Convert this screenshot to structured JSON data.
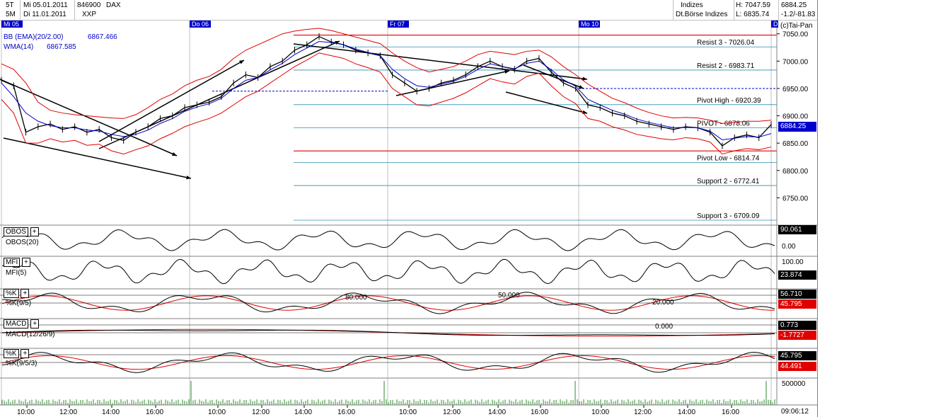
{
  "header": {
    "timeframe_1": "5T",
    "timeframe_2": "5M",
    "date_1": "Mi 05.01.2011",
    "date_2": "Di 11.01.2011",
    "wkn": "846900",
    "name": "DAX",
    "exchange_code": "XXP",
    "category": "Indizes",
    "exchange": "Dt.Börse Indizes",
    "high": "H: 7047.59",
    "low": "L: 6835.74",
    "last": "6884.25",
    "change": "-1.2/-81.83",
    "copyright": "(c)Tai-Pan"
  },
  "day_labels": [
    "Mi 05",
    "Do 06",
    "Fr 07",
    "Mo 10",
    "Di"
  ],
  "time_labels": [
    "10:00",
    "12:00",
    "14:00",
    "16:00",
    "10:00",
    "12:00",
    "14:00",
    "16:00",
    "10:00",
    "12:00",
    "14:00",
    "16:00",
    "10:00",
    "12:00",
    "14:00",
    "16:00"
  ],
  "clock": "09:06:12",
  "indicator_legend": {
    "bb_label": "BB (EMA)(20/2.00)",
    "bb_value": "6867.466",
    "wma_label": "WMA(14)",
    "wma_value": "6867.585"
  },
  "pivots": [
    {
      "label": "Resist 3 - 7026.04",
      "value": 7026.04
    },
    {
      "label": "Resist 2 - 6983.71",
      "value": 6983.71
    },
    {
      "label": "Pivot High - 6920.39",
      "value": 6920.39
    },
    {
      "label": "PIVOT - 6878.06",
      "value": 6878.06
    },
    {
      "label": "Pivot Low - 6814.74",
      "value": 6814.74
    },
    {
      "label": "Support 2 - 6772.41",
      "value": 6772.41
    },
    {
      "label": "Support 3 - 6709.09",
      "value": 6709.09
    }
  ],
  "panels": {
    "obos": {
      "button": "OBOS",
      "label": "OBOS(20)",
      "value_1": "90.061",
      "value_2": "0.00"
    },
    "mfi": {
      "button": "MFI",
      "label": "MFI(5)",
      "value_1": "100.00",
      "value_2": "23.874"
    },
    "stoch": {
      "button": "%K",
      "label": "%K(9/5)",
      "level_1": "80.000",
      "level_2": "50.000",
      "level_3": "20.000",
      "value_1": "56.710",
      "value_2": "45.795"
    },
    "macd": {
      "button": "MACD",
      "label": "MACD(12/26/9)",
      "zero": "0.000",
      "value_1": "0.773",
      "value_2": "-1.7727"
    },
    "stoch2": {
      "button": "%K",
      "label": "%K(9/5/3)",
      "value_1": "45.795",
      "value_2": "44.491"
    },
    "volume": {
      "value_1": "500000"
    }
  },
  "colors": {
    "price": "#000000",
    "bollinger": "#e00000",
    "wma": "#0000cc",
    "pivot_line": "#2a8fb0",
    "last_price_bg": "#0000cc",
    "signal": "#e00000",
    "day_label_bg": "#0000cc"
  },
  "chart_data": {
    "type": "line",
    "title": "DAX",
    "ylim": [
      6700,
      7060
    ],
    "y_ticks": [
      7050,
      7000,
      6950,
      6900,
      6850,
      6800,
      6750
    ],
    "last": 6884.25,
    "high": 7047.59,
    "low": 6835.74,
    "series": [
      {
        "name": "DAX",
        "values": [
          6965,
          6955,
          6870,
          6880,
          6885,
          6875,
          6880,
          6870,
          6875,
          6860,
          6855,
          6870,
          6880,
          6895,
          6900,
          6915,
          6920,
          6925,
          6935,
          6960,
          6975,
          6970,
          6990,
          7000,
          7020,
          7030,
          7045,
          7035,
          7030,
          7020,
          7015,
          7010,
          6975,
          6960,
          6945,
          6950,
          6960,
          6965,
          6975,
          6990,
          7000,
          6990,
          6985,
          7000,
          7005,
          6980,
          6960,
          6950,
          6920,
          6915,
          6905,
          6900,
          6890,
          6885,
          6880,
          6875,
          6880,
          6878,
          6870,
          6845,
          6860,
          6865,
          6860,
          6884
        ]
      },
      {
        "name": "WMA(14)",
        "values": [
          6960,
          6935,
          6905,
          6890,
          6882,
          6878,
          6878,
          6874,
          6872,
          6866,
          6862,
          6866,
          6874,
          6886,
          6895,
          6908,
          6916,
          6922,
          6932,
          6950,
          6965,
          6970,
          6984,
          6996,
          7012,
          7024,
          7036,
          7034,
          7030,
          7022,
          7016,
          7010,
          6985,
          6968,
          6955,
          6952,
          6958,
          6963,
          6972,
          6985,
          6995,
          6990,
          6986,
          6996,
          7000,
          6984,
          6966,
          6954,
          6930,
          6920,
          6910,
          6903,
          6894,
          6888,
          6883,
          6878,
          6879,
          6878,
          6872,
          6856,
          6859,
          6862,
          6861,
          6867.585
        ]
      }
    ],
    "bollinger": {
      "upper": [
        6995,
        6985,
        6960,
        6925,
        6910,
        6905,
        6902,
        6900,
        6898,
        6896,
        6895,
        6902,
        6915,
        6930,
        6940,
        6955,
        6965,
        6972,
        6985,
        7005,
        7020,
        7030,
        7040,
        7050,
        7055,
        7058,
        7060,
        7056,
        7050,
        7044,
        7038,
        7032,
        7015,
        7000,
        6988,
        6980,
        6985,
        6990,
        7000,
        7012,
        7018,
        7015,
        7012,
        7018,
        7020,
        7008,
        6990,
        6975,
        6958,
        6945,
        6932,
        6924,
        6914,
        6906,
        6900,
        6896,
        6897,
        6896,
        6892,
        6886,
        6888,
        6890,
        6890,
        6892
      ],
      "lower": [
        6930,
        6905,
        6850,
        6850,
        6858,
        6852,
        6855,
        6846,
        6848,
        6836,
        6830,
        6838,
        6845,
        6858,
        6868,
        6880,
        6888,
        6895,
        6905,
        6920,
        6935,
        6945,
        6960,
        6975,
        6990,
        7002,
        7015,
        7010,
        7005,
        6995,
        6988,
        6980,
        6950,
        6935,
        6920,
        6918,
        6925,
        6932,
        6942,
        6955,
        6968,
        6962,
        6958,
        6972,
        6978,
        6955,
        6935,
        6922,
        6895,
        6890,
        6880,
        6874,
        6866,
        6862,
        6858,
        6856,
        6860,
        6858,
        6852,
        6830,
        6836,
        6840,
        6838,
        6843
      ]
    }
  }
}
